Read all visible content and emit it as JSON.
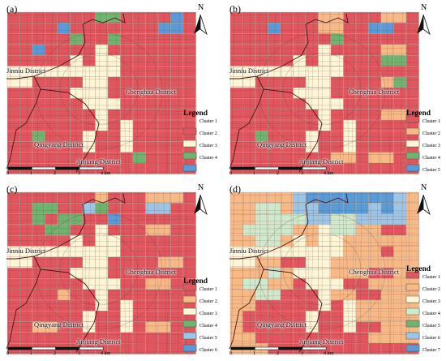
{
  "north_label": "N",
  "legend_title": "Legend",
  "scale": {
    "ticks": [
      "0",
      "1",
      "2",
      "3",
      "4 km"
    ]
  },
  "districts": {
    "jinniu": "Jinniu District",
    "chenghua": "Chenghua District",
    "qingyang": "Qingyang District",
    "jinjiang": "Jinjiang District"
  },
  "colors": {
    "red": "#e0565e",
    "orange": "#f7b986",
    "cream": "#fcf6d6",
    "green": "#6fb36f",
    "pale_green": "#cfe9cc",
    "light_blue": "#9dc5e6",
    "blue": "#5b9bd5"
  },
  "panels": [
    {
      "label": "(a)",
      "legend": [
        {
          "name": "Cluster 1",
          "color": "#e0565e"
        },
        {
          "name": "Cluster 2",
          "color": "#fcf6d6"
        },
        {
          "name": "Cluster 3",
          "color": "#6fb36f"
        },
        {
          "name": "Cluster 4",
          "color": "#5b9bd5"
        }
      ]
    },
    {
      "label": "(b)",
      "legend": [
        {
          "name": "Cluster 1",
          "color": "#e0565e"
        },
        {
          "name": "Cluster 2",
          "color": "#f7b986"
        },
        {
          "name": "Cluster 3",
          "color": "#fcf6d6"
        },
        {
          "name": "Cluster 4",
          "color": "#6fb36f"
        },
        {
          "name": "Cluster 5",
          "color": "#5b9bd5"
        }
      ]
    },
    {
      "label": "(c)",
      "legend": [
        {
          "name": "Cluster 1",
          "color": "#e0565e"
        },
        {
          "name": "Cluster 2",
          "color": "#f7b986"
        },
        {
          "name": "Cluster 3",
          "color": "#fcf6d6"
        },
        {
          "name": "Cluster 4",
          "color": "#6fb36f"
        },
        {
          "name": "Cluster 5",
          "color": "#9dc5e6"
        },
        {
          "name": "Cluster 6",
          "color": "#5b9bd5"
        }
      ]
    },
    {
      "label": "(d)",
      "legend": [
        {
          "name": "Cluster 1",
          "color": "#e0565e"
        },
        {
          "name": "Cluster 2",
          "color": "#f7b986"
        },
        {
          "name": "Cluster 3",
          "color": "#fcf6d6"
        },
        {
          "name": "Cluster 4",
          "color": "#cfe9cc"
        },
        {
          "name": "Cluster 5",
          "color": "#6fb36f"
        },
        {
          "name": "Cluster 6",
          "color": "#9dc5e6"
        },
        {
          "name": "Cluster 7",
          "color": "#5b9bd5"
        }
      ]
    }
  ],
  "grids": [
    [
      "RRRRRRRGGRRRRBR",
      "RRRRBRRRRRRRBBR",
      "RRRRRGRRGRRRRRR",
      "RRBRRRRWRRRRRRR",
      "RRRRRWRWWRRRRRR",
      "WWWWWWWWWRRRRRR",
      "WWRRRRWWRRRRRRR",
      "RRRRRWWWRRRRRRR",
      "RRRRRRWWWRRRRRR",
      "RRRRRRRWRRRRRRR",
      "RRRRRRRWRWRRRRR",
      "RRGRRRWRRWRRRRR",
      "RRRRRRWRRWRRRRR",
      "RRRRRRRRRRGRRRR",
      "RRRRRRRRRRRRRRR"
    ],
    [
      "RRRRRRROORRROOR",
      "RRRBRRROORRBBRR",
      "RRRRRRRRGRRRRRR",
      "RRRRRRRWRRRROOR",
      "RRRRRWRWWRRRGGR",
      "WWWWWWWWWRRRRRR",
      "WWRRRRWWRRRROGR",
      "RRRRRWWWRRRRRRR",
      "RRRRRRWWWRRRRRR",
      "RRRRRRRWRRRROOR",
      "RRRRRRRWRWRRRRR",
      "RRGRRRWRRWRRRRR",
      "RRRRRRWRRWRRRRR",
      "RRRRRRRROOROORR",
      "RRRRRRRRRRRRRRR"
    ],
    [
      "RRRRRRRORRROOOR",
      "RRGGRRLGRRRLLRR",
      "RRGRGGRRBRRRRRR",
      "RRRGGRRWRRROORR",
      "RRRRRWRWWRRRRRR",
      "WWWWWWWWWRRRRRR",
      "WWRRRRWWRRRROOR",
      "RRRRRWWWRRRRRRR",
      "RRRRRRWWWRROORR",
      "RRRRORRWRRRRRRR",
      "RRRRRRRWRWRRRRR",
      "RRRRRRWRRWRRRRR",
      "RROORRWRRWROORR",
      "RRRRRRRRRRRRRRR",
      "RRRRRRRRRRRRRRR"
    ],
    [
      "OOOOOLBBBBBBBLO",
      "OOPPOLLBBBBLBLO",
      "OOPPPPLLPPLLLLO",
      "OPPPPOOWPPOORRO",
      "OOPPOWOWWOOOOOO",
      "WWWWWWWWWOOOROO",
      "WWOORRWWOOOOOOO",
      "OOOPOWWWOOORROO",
      "OPPOORWWWRROOOO",
      "OOPPRRRWOORROOO",
      "OORRRRRWRWOOOOO",
      "ORRRRRWRRWOOOOO",
      "ORRRRRWRRWRROOO",
      "OORRRRRRRRROOOO",
      "OOORRRRRRRRRRRR"
    ]
  ]
}
